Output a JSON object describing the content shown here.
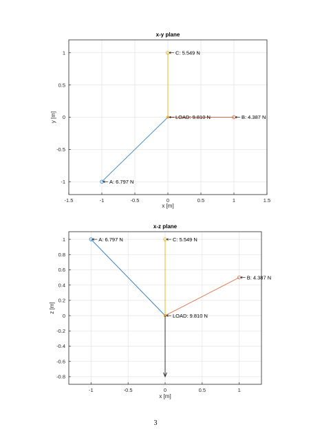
{
  "chart_data": [
    {
      "type": "line",
      "title": "x-y plane",
      "xlabel": "x [m]",
      "ylabel": "y [m]",
      "xlim": [
        -1.5,
        1.5
      ],
      "ylim": [
        -1.2,
        1.2
      ],
      "xticks": [
        "-1.5",
        "-1",
        "-0.5",
        "0",
        "0.5",
        "1",
        "1.5"
      ],
      "yticks": [
        "-1",
        "-0.5",
        "0",
        "0.5",
        "1"
      ],
      "grid": true,
      "series": [
        {
          "color": "#4a90c6",
          "x": [
            -1,
            0
          ],
          "y": [
            -1,
            0
          ],
          "marker": "circle"
        },
        {
          "color": "#d9663b",
          "x": [
            1,
            0
          ],
          "y": [
            0,
            0
          ],
          "marker": "circle"
        },
        {
          "color": "#e8b422",
          "x": [
            0,
            0
          ],
          "y": [
            1,
            0
          ],
          "marker": "circle"
        }
      ],
      "annotations": [
        {
          "text": "A: 6.797 N",
          "x": -1,
          "y": -1
        },
        {
          "text": "B: 4.387 N",
          "x": 1,
          "y": 0
        },
        {
          "text": "C: 5.549 N",
          "x": 0,
          "y": 1
        },
        {
          "text": "LOAD: 9.810 N",
          "x": 0,
          "y": 0
        }
      ]
    },
    {
      "type": "line",
      "title": "x-z plane",
      "xlabel": "x [m]",
      "ylabel": "z [m]",
      "xlim": [
        -1.3,
        1.3
      ],
      "ylim": [
        -0.9,
        1.1
      ],
      "xticks": [
        "-1",
        "-0.5",
        "0",
        "0.5",
        "1"
      ],
      "yticks": [
        "-0.8",
        "-0.6",
        "-0.4",
        "-0.2",
        "0",
        "0.2",
        "0.4",
        "0.6",
        "0.8",
        "1"
      ],
      "grid": true,
      "series": [
        {
          "color": "#3a7fbf",
          "x": [
            -1,
            0
          ],
          "y": [
            1,
            0
          ],
          "marker": "circle"
        },
        {
          "color": "#e07a52",
          "x": [
            1,
            0
          ],
          "y": [
            0.5,
            0
          ],
          "marker": "circle"
        },
        {
          "color": "#e8b422",
          "x": [
            0,
            0
          ],
          "y": [
            1,
            0
          ],
          "marker": "circle"
        },
        {
          "color": "#333333",
          "x": [
            0,
            0
          ],
          "y": [
            0,
            -0.8
          ],
          "marker": "arrow"
        }
      ],
      "annotations": [
        {
          "text": "A: 6.797 N",
          "x": -1,
          "y": 1
        },
        {
          "text": "C: 5.549 N",
          "x": 0,
          "y": 1
        },
        {
          "text": "B: 4.387 N",
          "x": 1,
          "y": 0.5
        },
        {
          "text": "LOAD: 9.810 N",
          "x": 0,
          "y": 0
        }
      ]
    }
  ],
  "page_number": "3"
}
